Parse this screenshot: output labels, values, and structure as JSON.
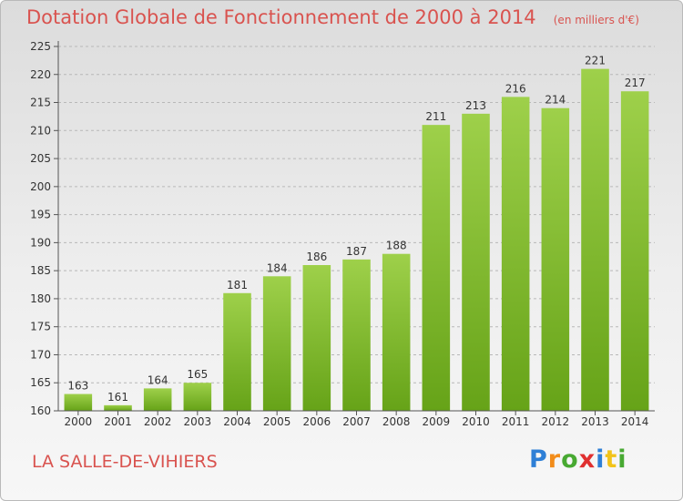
{
  "header": {
    "title": "Dotation Globale de Fonctionnement de 2000 à 2014",
    "unit": "(en milliers d'€)"
  },
  "footer": {
    "commune": "LA SALLE-DE-VIHIERS",
    "logo_letters": [
      "P",
      "r",
      "o",
      "x",
      "i",
      "t",
      "i"
    ],
    "logo_colors": [
      "#2e7fd6",
      "#f28c1a",
      "#48a932",
      "#e03030",
      "#2e7fd6",
      "#f2c31a",
      "#48a932"
    ]
  },
  "chart_data": {
    "type": "bar",
    "categories": [
      "2000",
      "2001",
      "2002",
      "2003",
      "2004",
      "2005",
      "2006",
      "2007",
      "2008",
      "2009",
      "2010",
      "2011",
      "2012",
      "2013",
      "2014"
    ],
    "values": [
      163,
      161,
      164,
      165,
      181,
      184,
      186,
      187,
      188,
      211,
      213,
      216,
      214,
      221,
      217
    ],
    "ylim": [
      160,
      225
    ],
    "yticks": [
      160,
      165,
      170,
      175,
      180,
      185,
      190,
      195,
      200,
      205,
      210,
      215,
      220,
      225
    ],
    "grid": true,
    "colors": {
      "bar_top": "#9ed04a",
      "bar_bottom": "#66a318",
      "grid": "#b8b8b8",
      "axis": "#555555"
    }
  }
}
